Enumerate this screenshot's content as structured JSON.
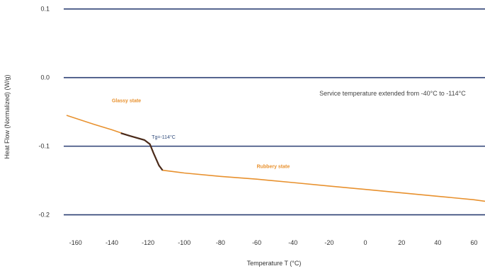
{
  "chart_data": {
    "type": "line",
    "title": "",
    "xlabel": "Temperature T (°C)",
    "ylabel": "Heat Flow (Normalized) (W/g)",
    "xlim": [
      -165,
      68
    ],
    "ylim": [
      -0.22,
      0.11
    ],
    "x_ticks": [
      -160,
      -140,
      -120,
      -100,
      -80,
      -60,
      -40,
      -20,
      0,
      20,
      40,
      60
    ],
    "x_tick_labels": [
      "-160",
      "-140",
      "-120",
      "-100",
      "-80",
      "-60",
      "-40",
      "-20",
      "0",
      "20",
      "40",
      "60"
    ],
    "y_ticks": [
      0.1,
      0.0,
      -0.1,
      -0.2
    ],
    "y_tick_labels": [
      "0.1",
      "0.0",
      "-0.1",
      "-0.2"
    ],
    "grid": "horizontal",
    "colors": {
      "curve": "#e8912e",
      "grid": "#2b3f73",
      "highlight": "#4a2a1a"
    },
    "series": [
      {
        "x": [
          -165,
          -150,
          -140,
          -130,
          -122,
          -119,
          -117,
          -114,
          -112,
          -100,
          -80,
          -60,
          -40,
          -20,
          0,
          20,
          40,
          60,
          68
        ],
        "y": [
          -0.055,
          -0.068,
          -0.076,
          -0.085,
          -0.091,
          -0.097,
          -0.11,
          -0.128,
          -0.135,
          -0.139,
          -0.144,
          -0.148,
          -0.153,
          -0.158,
          -0.163,
          -0.168,
          -0.173,
          -0.178,
          -0.181
        ]
      }
    ],
    "highlight": {
      "x": [
        -135,
        -130,
        -122,
        -119,
        -117,
        -114,
        -112
      ],
      "y": [
        -0.081,
        -0.085,
        -0.091,
        -0.097,
        -0.11,
        -0.128,
        -0.135
      ]
    },
    "annotations": [
      {
        "id": "glassy",
        "text": "Glassy state",
        "x": -140,
        "y": -0.036,
        "color": "#e8912e"
      },
      {
        "id": "rubbery",
        "text": "Rubbery state",
        "x": -60,
        "y": -0.132,
        "color": "#e8912e"
      },
      {
        "id": "tg",
        "text": "Tg=-114°C",
        "x": -118,
        "y": -0.089,
        "color": "#2f4a7a"
      },
      {
        "id": "service",
        "text": "Service temperature extended from -40°C to -114°C",
        "x": 15,
        "y": -0.026,
        "color": "#444444"
      }
    ]
  }
}
